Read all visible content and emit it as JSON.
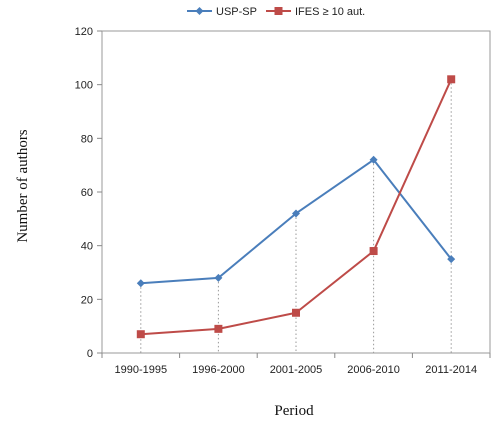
{
  "chart_data": {
    "type": "line",
    "categories": [
      "1990-1995",
      "1996-2000",
      "2001-2005",
      "2006-2010",
      "2011-2014"
    ],
    "series": [
      {
        "name": "USP-SP",
        "values": [
          26,
          28,
          52,
          72,
          35
        ],
        "color": "#4a7ebb",
        "marker": "diamond"
      },
      {
        "name": "IFES ≥ 10 aut.",
        "values": [
          7,
          9,
          15,
          38,
          102
        ],
        "color": "#be4b48",
        "marker": "square"
      }
    ],
    "xlabel": "Period",
    "ylabel": "Number of authors",
    "ylim": [
      0,
      120
    ],
    "yticks": [
      0,
      20,
      40,
      60,
      80,
      100,
      120
    ],
    "grid": "vertical dotted drop lines",
    "legend_position": "top"
  }
}
